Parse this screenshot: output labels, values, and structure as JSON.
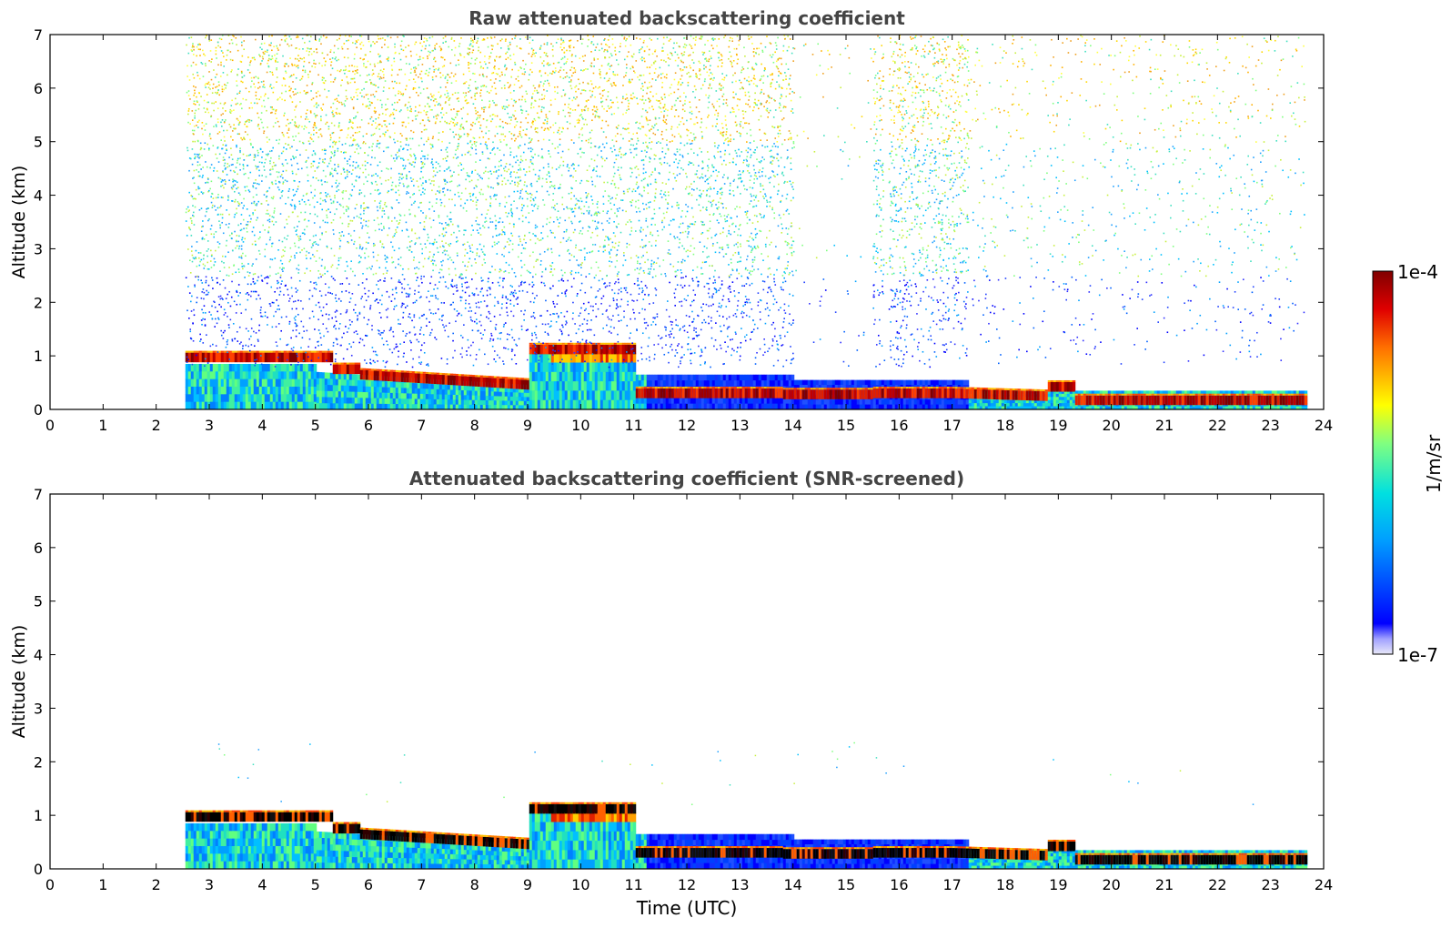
{
  "chart_data": [
    {
      "type": "heatmap",
      "title": "Raw attenuated backscattering coefficient",
      "xlabel": "",
      "ylabel": "Altitude (km)",
      "xlim": [
        0,
        24
      ],
      "ylim": [
        0,
        7
      ],
      "xticks": [
        0,
        1,
        2,
        3,
        4,
        5,
        6,
        7,
        8,
        9,
        10,
        11,
        12,
        13,
        14,
        15,
        16,
        17,
        18,
        19,
        20,
        21,
        22,
        23,
        24
      ],
      "yticks": [
        0,
        1,
        2,
        3,
        4,
        5,
        6,
        7
      ],
      "data_extent_hours": [
        2.55,
        23.65
      ],
      "screened": false,
      "features": [
        {
          "kind": "cloud_layer",
          "x": [
            2.6,
            3.0,
            3.5,
            4.0,
            4.5,
            5.0,
            5.3
          ],
          "y": [
            0.98,
            0.97,
            0.96,
            0.97,
            0.98,
            0.96,
            0.95
          ]
        },
        {
          "kind": "cloud_layer",
          "x": [
            5.8,
            6.5,
            7.0,
            7.5,
            8.0,
            8.5,
            9.0
          ],
          "y": [
            0.65,
            0.6,
            0.55,
            0.58,
            0.55,
            0.45,
            0.4
          ]
        },
        {
          "kind": "cloud_layer",
          "x": [
            9.2,
            9.6,
            10.0,
            10.5,
            11.0
          ],
          "y": [
            1.1,
            1.12,
            1.15,
            1.15,
            1.15
          ]
        },
        {
          "kind": "cloud_layer",
          "x": [
            13.8,
            14.2,
            14.6,
            15.0,
            15.4
          ],
          "y": [
            0.25,
            0.28,
            0.3,
            0.28,
            0.25
          ]
        },
        {
          "kind": "cloud_layer",
          "x": [
            17.0,
            17.5,
            18.0,
            18.5,
            19.0,
            19.5,
            20.0,
            21.0,
            22.0,
            23.0,
            23.6
          ],
          "y": [
            0.35,
            0.3,
            0.25,
            0.28,
            0.42,
            0.28,
            0.18,
            0.15,
            0.15,
            0.15,
            0.15
          ]
        }
      ]
    },
    {
      "type": "heatmap",
      "title": "Attenuated backscattering coefficient (SNR-screened)",
      "xlabel": "Time (UTC)",
      "ylabel": "Altitude (km)",
      "xlim": [
        0,
        24
      ],
      "ylim": [
        0,
        7
      ],
      "xticks": [
        0,
        1,
        2,
        3,
        4,
        5,
        6,
        7,
        8,
        9,
        10,
        11,
        12,
        13,
        14,
        15,
        16,
        17,
        18,
        19,
        20,
        21,
        22,
        23,
        24
      ],
      "yticks": [
        0,
        1,
        2,
        3,
        4,
        5,
        6,
        7
      ],
      "data_extent_hours": [
        2.55,
        23.65
      ],
      "screened": true
    }
  ],
  "colorbar": {
    "label": "1/m/sr",
    "max_label": "1e-4",
    "min_label": "1e-7",
    "vmin": 1e-07,
    "vmax": 0.0001,
    "scale": "log",
    "colormap": "jet",
    "colors": [
      "#e8e8f8",
      "#0000ff",
      "#00e0ff",
      "#ffff00",
      "#ff7000",
      "#800000"
    ]
  }
}
